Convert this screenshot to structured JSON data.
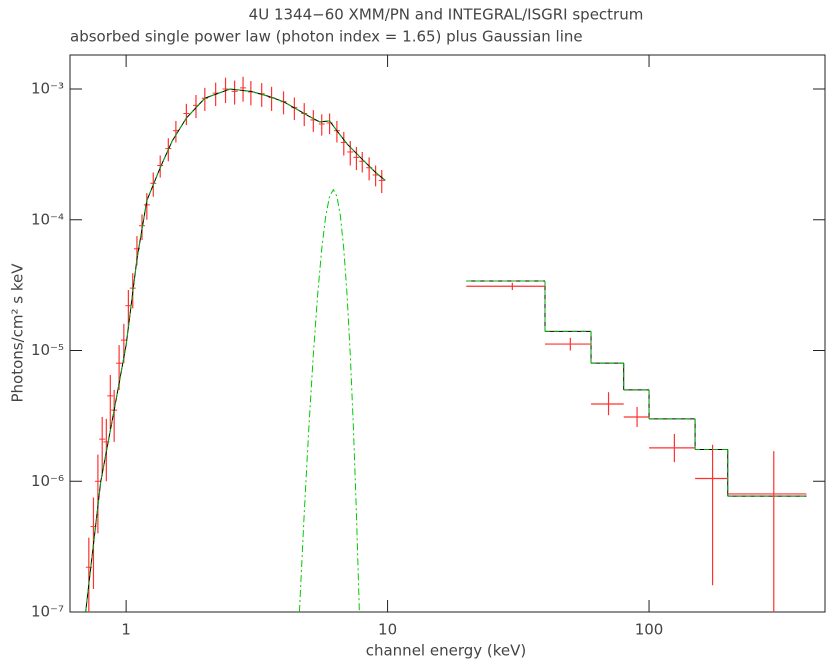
{
  "chart_data": {
    "type": "line",
    "title": "4U 1344−60 XMM/PN and INTEGRAL/ISGRI spectrum",
    "subtitle": "absorbed single power law (photon index = 1.65) plus Gaussian line",
    "x_label": "channel energy (keV)",
    "y_label": "Photons/cm² s keV",
    "log_x": true,
    "log_y": true,
    "xlim": [
      0.61,
      471
    ],
    "ylim": [
      1e-07,
      0.00182
    ],
    "xticks": [
      1,
      10,
      100
    ],
    "yticks": [
      {
        "value": 1e-07,
        "label": "10⁻⁷"
      },
      {
        "value": 1e-06,
        "label": "10⁻⁶"
      },
      {
        "value": 1e-05,
        "label": "10⁻⁵"
      },
      {
        "value": 0.0001,
        "label": "10⁻⁴"
      },
      {
        "value": 0.001,
        "label": "10⁻³"
      }
    ],
    "series": [
      {
        "type": "errorbar",
        "color": "#ff3030",
        "x": [
          0.72,
          0.75,
          0.78,
          0.81,
          0.84,
          0.87,
          0.9,
          0.94,
          0.98,
          1.02,
          1.06,
          1.1,
          1.15,
          1.2,
          1.27,
          1.35,
          1.45,
          1.55,
          1.7,
          1.85,
          2.0,
          2.2,
          2.4,
          2.6,
          2.8,
          3.0,
          3.3,
          3.6,
          4.0,
          4.4,
          4.8,
          5.2,
          5.6,
          6.0,
          6.4,
          6.8,
          7.2,
          7.6,
          8.0,
          8.5,
          9.0,
          9.5
        ],
        "values": [
          2.2e-07,
          4.5e-07,
          1e-06,
          2.1e-06,
          2e-06,
          4.5e-06,
          3.5e-06,
          8e-06,
          1.2e-05,
          2.2e-05,
          3e-05,
          6e-05,
          9e-05,
          0.00013,
          0.00019,
          0.00026,
          0.00035,
          0.00048,
          0.00065,
          0.00075,
          0.00085,
          0.00093,
          0.001,
          0.00096,
          0.00102,
          0.00095,
          0.00092,
          0.00086,
          0.0008,
          0.00072,
          0.00065,
          0.00058,
          0.00054,
          0.00055,
          0.00048,
          0.00039,
          0.00033,
          0.0003,
          0.00028,
          0.00025,
          0.00022,
          0.0002
        ],
        "errors": [
          1.5e-07,
          3e-07,
          6e-07,
          1e-06,
          1e-06,
          2e-06,
          1.5e-06,
          3e-06,
          4e-06,
          7e-06,
          9e-06,
          1.5e-05,
          2e-05,
          3e-05,
          4e-05,
          5e-05,
          7e-05,
          9e-05,
          0.00012,
          0.00015,
          0.00017,
          0.00019,
          0.00022,
          0.0002,
          0.00022,
          0.0002,
          0.00019,
          0.00018,
          0.00016,
          0.00014,
          0.00013,
          0.00011,
          0.0001,
          0.0001,
          9e-05,
          8e-05,
          7e-05,
          6e-05,
          5e-05,
          5e-05,
          4e-05,
          4e-05
        ]
      },
      {
        "type": "line",
        "color": "#00b000",
        "color2": "#000000",
        "x": [
          0.7,
          0.8,
          0.9,
          1.0,
          1.1,
          1.2,
          1.35,
          1.5,
          1.7,
          2.0,
          2.5,
          3.0,
          3.5,
          4.0,
          5.0,
          5.5,
          6.0,
          6.5,
          7.0,
          8.0,
          9.0,
          9.8
        ],
        "values": [
          1e-07,
          1e-06,
          3.5e-06,
          1.1e-05,
          5e-05,
          0.00014,
          0.00025,
          0.0004,
          0.0006,
          0.00085,
          0.001,
          0.00096,
          0.00088,
          0.0008,
          0.00062,
          0.00056,
          0.00057,
          0.00046,
          0.00038,
          0.00029,
          0.00023,
          0.0002
        ]
      },
      {
        "type": "dashdot",
        "color": "#00cc00",
        "x": [
          4.6,
          4.8,
          5.0,
          5.2,
          5.4,
          5.6,
          5.8,
          6.0,
          6.2,
          6.4,
          6.6,
          6.8,
          7.0,
          7.2,
          7.4,
          7.6,
          7.8
        ],
        "values": [
          1e-07,
          5.7e-07,
          2.6e-06,
          9.3e-06,
          2.65e-05,
          5.97e-05,
          0.000107,
          0.000151,
          0.00017,
          0.000151,
          0.000107,
          5.97e-05,
          2.65e-05,
          9.3e-06,
          2.6e-06,
          5.7e-07,
          1e-07
        ]
      },
      {
        "type": "step",
        "color": "#00b000",
        "color2": "#000000",
        "bins": [
          20,
          40,
          60,
          80,
          100,
          150,
          200,
          400
        ],
        "values": [
          3.4e-05,
          1.4e-05,
          8e-06,
          5e-06,
          3e-06,
          1.75e-06,
          7.7e-07
        ]
      },
      {
        "type": "errorbar",
        "color": "#ff3030",
        "x": [
          30,
          50,
          70,
          90,
          125,
          175,
          300
        ],
        "x_low": [
          20,
          40,
          60,
          80,
          100,
          150,
          200
        ],
        "x_high": [
          40,
          60,
          80,
          100,
          150,
          200,
          400
        ],
        "values": [
          3.1e-05,
          1.12e-05,
          3.9e-06,
          3.1e-06,
          1.8e-06,
          1.05e-06,
          8e-07
        ],
        "y_low": [
          2.9e-05,
          1e-05,
          3.2e-06,
          2.6e-06,
          1.4e-06,
          1.6e-07,
          5e-08
        ],
        "y_high": [
          3.3e-05,
          1.25e-05,
          4.8e-06,
          3.7e-06,
          2.3e-06,
          1.9e-06,
          1.7e-06
        ]
      }
    ]
  }
}
